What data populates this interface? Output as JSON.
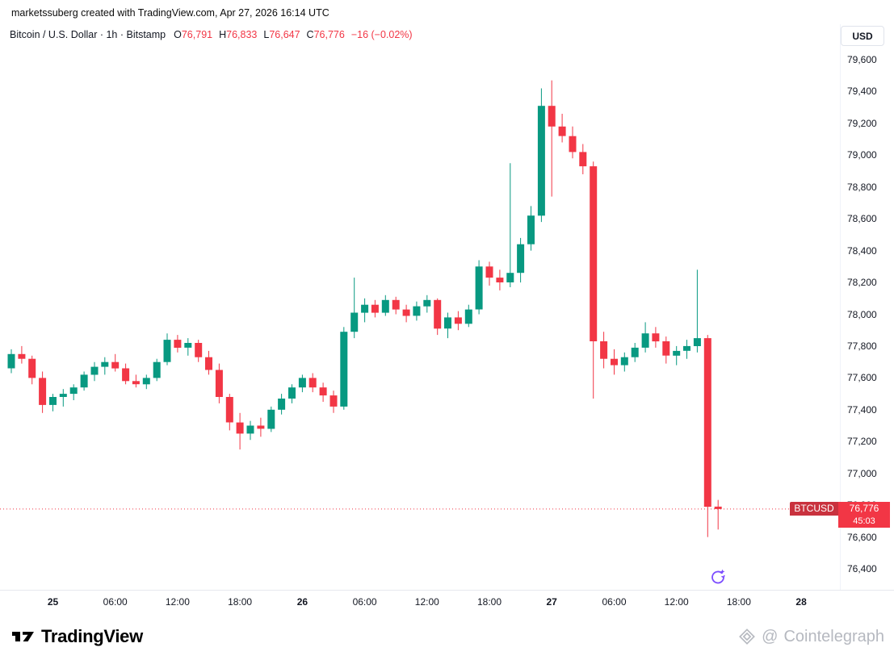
{
  "attribution": "marketssuberg created with TradingView.com, Apr 27, 2026 16:14 UTC",
  "header": {
    "symbol_title": "Bitcoin / U.S. Dollar · 1h · Bitstamp",
    "ohlc": {
      "o_label": "O",
      "o": "76,791",
      "h_label": "H",
      "h": "76,833",
      "l_label": "L",
      "l": "76,647",
      "c_label": "C",
      "c": "76,776",
      "change": "−16 (−0.02%)"
    },
    "currency_button": "USD"
  },
  "price_label": {
    "symbol": "BTCUSD",
    "price": "76,776",
    "countdown": "45:03"
  },
  "footer": {
    "brand": "TradingView",
    "watermark_at": "@",
    "watermark": "Cointelegraph"
  },
  "colors": {
    "up": "#089981",
    "down": "#F23645",
    "axis_text": "#131722",
    "label_bg": "#F23645",
    "label_tag_bg": "#c9323e",
    "watermark": "#b6b9c0",
    "event_icon": "#7C4DFF"
  },
  "chart_data": {
    "type": "candlestick",
    "title": "Bitcoin / U.S. Dollar",
    "interval": "1h",
    "exchange": "Bitstamp",
    "last_price": 76776,
    "price_axis": {
      "min": 76400,
      "max": 79600,
      "step": 200,
      "labels": [
        {
          "value": 79600,
          "label": "79,600"
        },
        {
          "value": 79400,
          "label": "79,400"
        },
        {
          "value": 79200,
          "label": "79,200"
        },
        {
          "value": 79000,
          "label": "79,000"
        },
        {
          "value": 78800,
          "label": "78,800"
        },
        {
          "value": 78600,
          "label": "78,600"
        },
        {
          "value": 78400,
          "label": "78,400"
        },
        {
          "value": 78200,
          "label": "78,200"
        },
        {
          "value": 78000,
          "label": "78,000"
        },
        {
          "value": 77800,
          "label": "77,800"
        },
        {
          "value": 77600,
          "label": "77,600"
        },
        {
          "value": 77400,
          "label": "77,400"
        },
        {
          "value": 77200,
          "label": "77,200"
        },
        {
          "value": 77000,
          "label": "77,000"
        },
        {
          "value": 76800,
          "label": "76,800"
        },
        {
          "value": 76600,
          "label": "76,600"
        },
        {
          "value": 76400,
          "label": "76,400"
        }
      ]
    },
    "time_ticks": [
      {
        "label": "25",
        "index": 4,
        "bold": true
      },
      {
        "label": "06:00",
        "index": 10,
        "bold": false
      },
      {
        "label": "12:00",
        "index": 16,
        "bold": false
      },
      {
        "label": "18:00",
        "index": 22,
        "bold": false
      },
      {
        "label": "26",
        "index": 28,
        "bold": true
      },
      {
        "label": "06:00",
        "index": 34,
        "bold": false
      },
      {
        "label": "12:00",
        "index": 40,
        "bold": false
      },
      {
        "label": "18:00",
        "index": 46,
        "bold": false
      },
      {
        "label": "27",
        "index": 52,
        "bold": true
      },
      {
        "label": "06:00",
        "index": 58,
        "bold": false
      },
      {
        "label": "12:00",
        "index": 64,
        "bold": false
      },
      {
        "label": "18:00",
        "index": 70,
        "bold": false
      },
      {
        "label": "28",
        "index": 76,
        "bold": true
      }
    ],
    "candles": [
      [
        "Apr 24 20:00",
        77660,
        77780,
        77630,
        77750
      ],
      [
        "Apr 24 21:00",
        77750,
        77800,
        77690,
        77720
      ],
      [
        "Apr 24 22:00",
        77720,
        77740,
        77560,
        77600
      ],
      [
        "Apr 24 23:00",
        77600,
        77640,
        77380,
        77430
      ],
      [
        "Apr 25 00:00",
        77430,
        77500,
        77390,
        77480
      ],
      [
        "Apr 25 01:00",
        77480,
        77530,
        77420,
        77500
      ],
      [
        "Apr 25 02:00",
        77500,
        77560,
        77460,
        77540
      ],
      [
        "Apr 25 03:00",
        77540,
        77640,
        77520,
        77620
      ],
      [
        "Apr 25 04:00",
        77620,
        77700,
        77580,
        77670
      ],
      [
        "Apr 25 05:00",
        77670,
        77730,
        77620,
        77700
      ],
      [
        "Apr 25 06:00",
        77700,
        77750,
        77640,
        77660
      ],
      [
        "Apr 25 07:00",
        77660,
        77690,
        77560,
        77580
      ],
      [
        "Apr 25 08:00",
        77580,
        77620,
        77540,
        77560
      ],
      [
        "Apr 25 09:00",
        77560,
        77620,
        77530,
        77600
      ],
      [
        "Apr 25 10:00",
        77600,
        77720,
        77580,
        77700
      ],
      [
        "Apr 25 11:00",
        77700,
        77880,
        77680,
        77840
      ],
      [
        "Apr 25 12:00",
        77840,
        77870,
        77760,
        77790
      ],
      [
        "Apr 25 13:00",
        77790,
        77850,
        77740,
        77820
      ],
      [
        "Apr 25 14:00",
        77820,
        77840,
        77700,
        77730
      ],
      [
        "Apr 25 15:00",
        77730,
        77770,
        77620,
        77650
      ],
      [
        "Apr 25 16:00",
        77650,
        77690,
        77440,
        77480
      ],
      [
        "Apr 25 17:00",
        77480,
        77500,
        77270,
        77320
      ],
      [
        "Apr 25 18:00",
        77320,
        77380,
        77150,
        77250
      ],
      [
        "Apr 25 19:00",
        77250,
        77330,
        77210,
        77300
      ],
      [
        "Apr 25 20:00",
        77300,
        77350,
        77230,
        77280
      ],
      [
        "Apr 25 21:00",
        77280,
        77420,
        77260,
        77400
      ],
      [
        "Apr 25 22:00",
        77400,
        77500,
        77370,
        77470
      ],
      [
        "Apr 25 23:00",
        77470,
        77560,
        77440,
        77540
      ],
      [
        "Apr 26 00:00",
        77540,
        77620,
        77510,
        77600
      ],
      [
        "Apr 26 01:00",
        77600,
        77630,
        77510,
        77540
      ],
      [
        "Apr 26 02:00",
        77540,
        77570,
        77450,
        77490
      ],
      [
        "Apr 26 03:00",
        77490,
        77520,
        77380,
        77420
      ],
      [
        "Apr 26 04:00",
        77420,
        77920,
        77400,
        77890
      ],
      [
        "Apr 26 05:00",
        77890,
        78230,
        77850,
        78010
      ],
      [
        "Apr 26 06:00",
        78010,
        78100,
        77950,
        78060
      ],
      [
        "Apr 26 07:00",
        78060,
        78090,
        77980,
        78010
      ],
      [
        "Apr 26 08:00",
        78010,
        78120,
        77990,
        78090
      ],
      [
        "Apr 26 09:00",
        78090,
        78110,
        78000,
        78030
      ],
      [
        "Apr 26 10:00",
        78030,
        78060,
        77950,
        77990
      ],
      [
        "Apr 26 11:00",
        77990,
        78080,
        77960,
        78050
      ],
      [
        "Apr 26 12:00",
        78050,
        78120,
        78010,
        78090
      ],
      [
        "Apr 26 13:00",
        78090,
        78100,
        77870,
        77910
      ],
      [
        "Apr 26 14:00",
        77910,
        78010,
        77850,
        77980
      ],
      [
        "Apr 26 15:00",
        77980,
        78020,
        77900,
        77940
      ],
      [
        "Apr 26 16:00",
        77940,
        78060,
        77920,
        78030
      ],
      [
        "Apr 26 17:00",
        78030,
        78340,
        78000,
        78300
      ],
      [
        "Apr 26 18:00",
        78300,
        78330,
        78180,
        78230
      ],
      [
        "Apr 26 19:00",
        78230,
        78280,
        78150,
        78200
      ],
      [
        "Apr 26 20:00",
        78200,
        78950,
        78170,
        78260
      ],
      [
        "Apr 26 21:00",
        78260,
        78480,
        78200,
        78440
      ],
      [
        "Apr 26 22:00",
        78440,
        78680,
        78400,
        78620
      ],
      [
        "Apr 26 23:00",
        78620,
        79420,
        78580,
        79310
      ],
      [
        "Apr 27 00:00",
        79310,
        79470,
        78740,
        79180
      ],
      [
        "Apr 27 01:00",
        79180,
        79260,
        79080,
        79120
      ],
      [
        "Apr 27 02:00",
        79120,
        79180,
        78980,
        79020
      ],
      [
        "Apr 27 03:00",
        79020,
        79070,
        78880,
        78930
      ],
      [
        "Apr 27 04:00",
        78930,
        78960,
        77470,
        77830
      ],
      [
        "Apr 27 05:00",
        77830,
        77890,
        77660,
        77720
      ],
      [
        "Apr 27 06:00",
        77720,
        77780,
        77620,
        77680
      ],
      [
        "Apr 27 07:00",
        77680,
        77760,
        77640,
        77730
      ],
      [
        "Apr 27 08:00",
        77730,
        77820,
        77700,
        77790
      ],
      [
        "Apr 27 09:00",
        77790,
        77950,
        77760,
        77880
      ],
      [
        "Apr 27 10:00",
        77880,
        77920,
        77790,
        77830
      ],
      [
        "Apr 27 11:00",
        77830,
        77860,
        77690,
        77740
      ],
      [
        "Apr 27 12:00",
        77740,
        77800,
        77680,
        77770
      ],
      [
        "Apr 27 13:00",
        77770,
        77840,
        77720,
        77800
      ],
      [
        "Apr 27 14:00",
        77800,
        78280,
        77760,
        77850
      ],
      [
        "Apr 27 15:00",
        77850,
        77870,
        76600,
        76790
      ],
      [
        "Apr 27 16:00",
        76791,
        76833,
        76647,
        76776
      ]
    ]
  }
}
